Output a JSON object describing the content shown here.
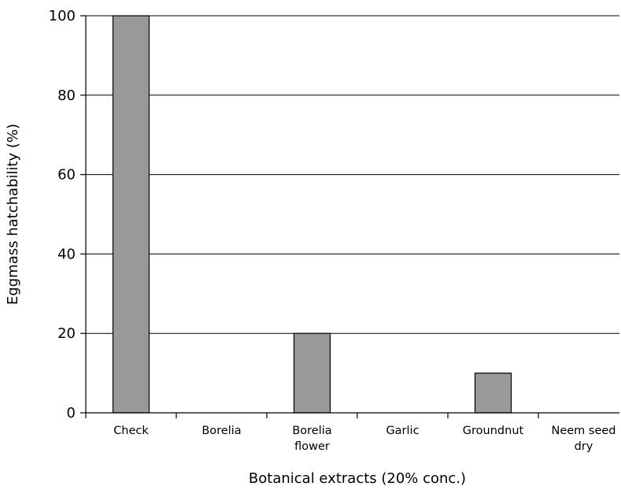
{
  "chart_data": {
    "type": "bar",
    "categories": [
      "Check",
      "Borelia",
      "Borelia flower",
      "Garlic",
      "Groundnut",
      "Neem seed dry"
    ],
    "category_label_lines": [
      [
        "Check"
      ],
      [
        "Borelia"
      ],
      [
        "Borelia",
        "flower"
      ],
      [
        "Garlic"
      ],
      [
        "Groundnut"
      ],
      [
        "Neem seed",
        "dry"
      ]
    ],
    "values": [
      100,
      0,
      20,
      0,
      10,
      0
    ],
    "title": "",
    "xlabel": "Botanical extracts (20% conc.)",
    "ylabel": "Eggmass hatchability (%)",
    "ylim": [
      0,
      100
    ],
    "yticks": [
      0,
      20,
      40,
      60,
      80,
      100
    ],
    "ytick_labels": [
      "0",
      "20",
      "40",
      "60",
      "80",
      "100"
    ],
    "grid": "horizontal",
    "legend": "none",
    "colors": {
      "bar_fill": "#999999",
      "bar_stroke": "#000000",
      "gridline": "#000000",
      "axis": "#000000"
    }
  }
}
